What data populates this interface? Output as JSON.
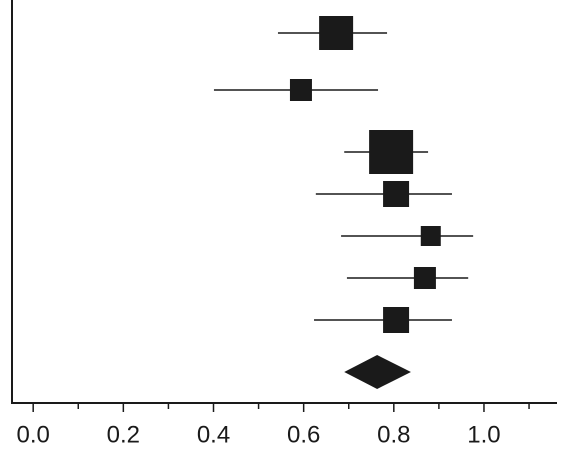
{
  "chart_data": {
    "type": "forest",
    "estimates": [
      0.672,
      0.594,
      0.794,
      0.805,
      0.882,
      0.869,
      0.805
    ],
    "lower": [
      0.543,
      0.401,
      0.69,
      0.627,
      0.683,
      0.696,
      0.623
    ],
    "upper": [
      0.785,
      0.765,
      0.876,
      0.929,
      0.976,
      0.965,
      0.929
    ],
    "weights": [
      17,
      11,
      22,
      13,
      10,
      11,
      13
    ],
    "summary": {
      "estimate": 0.763,
      "lower": 0.69,
      "upper": 0.838
    },
    "color": "#1a1a1a",
    "xlim": [
      -0.047,
      1.162
    ],
    "xticks": [
      {
        "value": 0,
        "label": "0.0"
      },
      {
        "value": 0.2,
        "label": "0.2"
      },
      {
        "value": 0.4,
        "label": "0.4"
      },
      {
        "value": 0.6,
        "label": "0.6"
      },
      {
        "value": 0.8,
        "label": "0.8"
      },
      {
        "value": 1,
        "label": "1.0"
      }
    ],
    "xminorticks": [
      0.1,
      0.3,
      0.5,
      0.7,
      0.9,
      1.1
    ]
  }
}
